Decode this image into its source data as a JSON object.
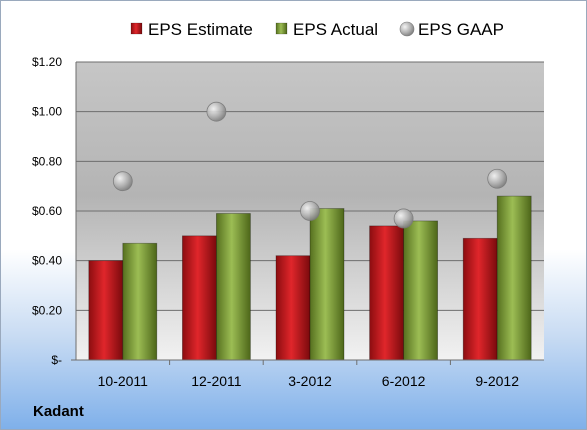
{
  "chart_data": {
    "type": "bar",
    "title": "",
    "xlabel": "",
    "ylabel": "",
    "categories": [
      "10-2011",
      "12-2011",
      "3-2012",
      "6-2012",
      "9-2012"
    ],
    "series": [
      {
        "name": "EPS Estimate",
        "type": "bar",
        "color": "#c0161c",
        "values": [
          0.4,
          0.5,
          0.42,
          0.54,
          0.49
        ]
      },
      {
        "name": "EPS Actual",
        "type": "bar",
        "color": "#7a9a38",
        "values": [
          0.47,
          0.59,
          0.61,
          0.56,
          0.66
        ]
      },
      {
        "name": "EPS GAAP",
        "type": "scatter",
        "color": "#a6a6a6",
        "values": [
          0.72,
          1.0,
          0.6,
          0.57,
          0.73
        ]
      }
    ],
    "ylim": [
      0,
      1.2
    ],
    "yticks": [
      {
        "value": 0,
        "label": "$-"
      },
      {
        "value": 0.2,
        "label": "$0.20"
      },
      {
        "value": 0.4,
        "label": "$0.40"
      },
      {
        "value": 0.6,
        "label": "$0.60"
      },
      {
        "value": 0.8,
        "label": "$0.80"
      },
      {
        "value": 1.0,
        "label": "$1.00"
      },
      {
        "value": 1.2,
        "label": "$1.20"
      }
    ],
    "grid": true,
    "legend_position": "top"
  },
  "company_label": "Kadant"
}
